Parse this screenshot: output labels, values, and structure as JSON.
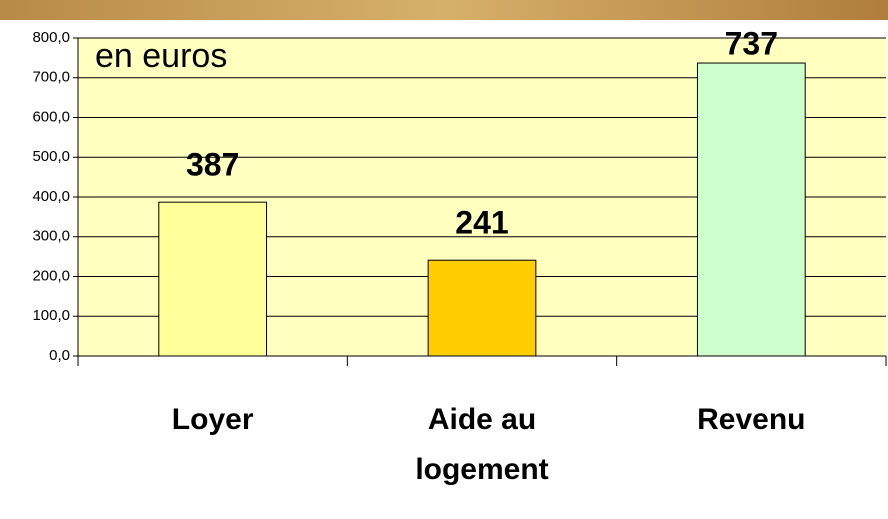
{
  "chart_data": {
    "type": "bar",
    "annotation": "en euros",
    "categories": [
      "Loyer",
      "Aide au logement",
      "Revenu"
    ],
    "values": [
      387,
      241,
      737
    ],
    "colors": [
      "#ffff99",
      "#ffcc00",
      "#ccffcc"
    ],
    "ylim": [
      0,
      800
    ],
    "yticks": [
      {
        "value": 0,
        "label": "0,0"
      },
      {
        "value": 100,
        "label": "100,0"
      },
      {
        "value": 200,
        "label": "200,0"
      },
      {
        "value": 300,
        "label": "300,0"
      },
      {
        "value": 400,
        "label": "400,0"
      },
      {
        "value": 500,
        "label": "500,0"
      },
      {
        "value": 600,
        "label": "600,0"
      },
      {
        "value": 700,
        "label": "700,0"
      },
      {
        "value": 800,
        "label": "800,0"
      }
    ],
    "grid": true
  }
}
